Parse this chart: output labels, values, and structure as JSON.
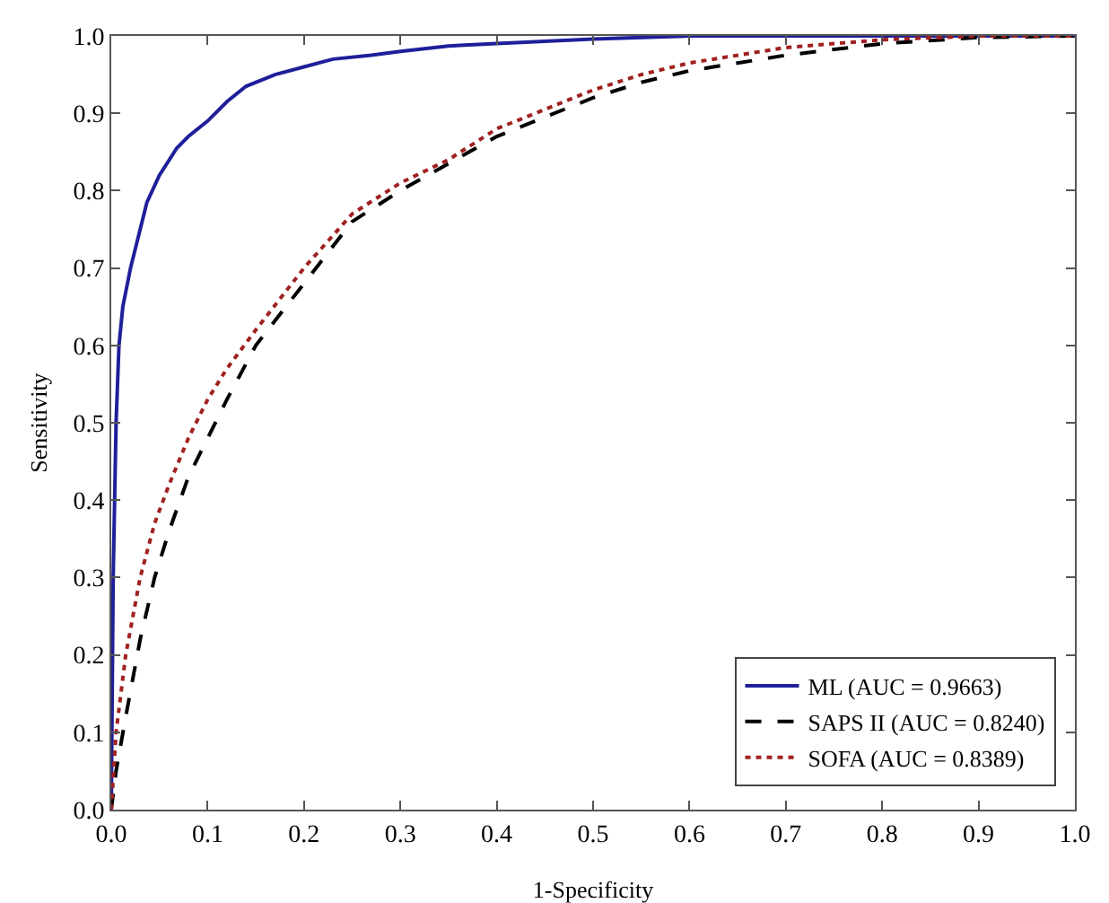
{
  "chart_data": {
    "type": "line",
    "xlabel": "1-Specificity",
    "ylabel": "Sensitivity",
    "xlim": [
      0,
      1
    ],
    "ylim": [
      0,
      1
    ],
    "xticks": [
      {
        "value": 0,
        "label": "0.0"
      },
      0.1,
      0.2,
      0.3,
      0.4,
      0.5,
      0.6,
      0.7,
      0.8,
      0.9,
      {
        "value": 1,
        "label": "1.0"
      }
    ],
    "yticks": [
      {
        "value": 0,
        "label": "0.0"
      },
      0.1,
      0.2,
      0.3,
      0.4,
      0.5,
      0.6,
      0.7,
      0.8,
      0.9,
      {
        "value": 1,
        "label": "1.0"
      }
    ],
    "grid": false,
    "legend": "bottom right",
    "marker": "none",
    "series": [
      {
        "name": "ML (AUC = 0.9663)",
        "color": "#1f1f9a",
        "line_style": "solid",
        "x": [
          0,
          0.002,
          0.005,
          0.008,
          0.012,
          0.02,
          0.03,
          0.037,
          0.05,
          0.068,
          0.08,
          0.1,
          0.12,
          0.14,
          0.17,
          0.2,
          0.23,
          0.27,
          0.3,
          0.35,
          0.4,
          0.5,
          0.6,
          1
        ],
        "values": [
          0,
          0.3,
          0.5,
          0.6,
          0.65,
          0.7,
          0.75,
          0.785,
          0.82,
          0.855,
          0.87,
          0.89,
          0.915,
          0.935,
          0.95,
          0.96,
          0.97,
          0.975,
          0.98,
          0.987,
          0.99,
          0.996,
          1,
          1
        ]
      },
      {
        "name": "SAPS II (AUC = 0.8240)",
        "color": "#000000",
        "line_style": "dashed",
        "x": [
          0,
          0.005,
          0.015,
          0.03,
          0.045,
          0.06,
          0.08,
          0.1,
          0.12,
          0.15,
          0.2,
          0.25,
          0.3,
          0.35,
          0.4,
          0.45,
          0.5,
          0.55,
          0.6,
          0.7,
          0.8,
          0.9,
          1
        ],
        "values": [
          0,
          0.05,
          0.12,
          0.22,
          0.3,
          0.36,
          0.43,
          0.48,
          0.53,
          0.6,
          0.68,
          0.76,
          0.8,
          0.835,
          0.87,
          0.895,
          0.92,
          0.94,
          0.955,
          0.975,
          0.99,
          0.998,
          1
        ]
      },
      {
        "name": "SOFA (AUC = 0.8389)",
        "color": "#a02020",
        "line_style": "dotted",
        "x": [
          0,
          0.005,
          0.015,
          0.03,
          0.045,
          0.06,
          0.08,
          0.1,
          0.12,
          0.15,
          0.2,
          0.25,
          0.3,
          0.35,
          0.4,
          0.45,
          0.5,
          0.55,
          0.6,
          0.7,
          0.8,
          0.9,
          1
        ],
        "values": [
          0,
          0.1,
          0.2,
          0.3,
          0.37,
          0.42,
          0.48,
          0.53,
          0.57,
          0.62,
          0.7,
          0.77,
          0.81,
          0.84,
          0.88,
          0.905,
          0.93,
          0.95,
          0.965,
          0.985,
          0.995,
          1,
          1
        ]
      }
    ]
  }
}
